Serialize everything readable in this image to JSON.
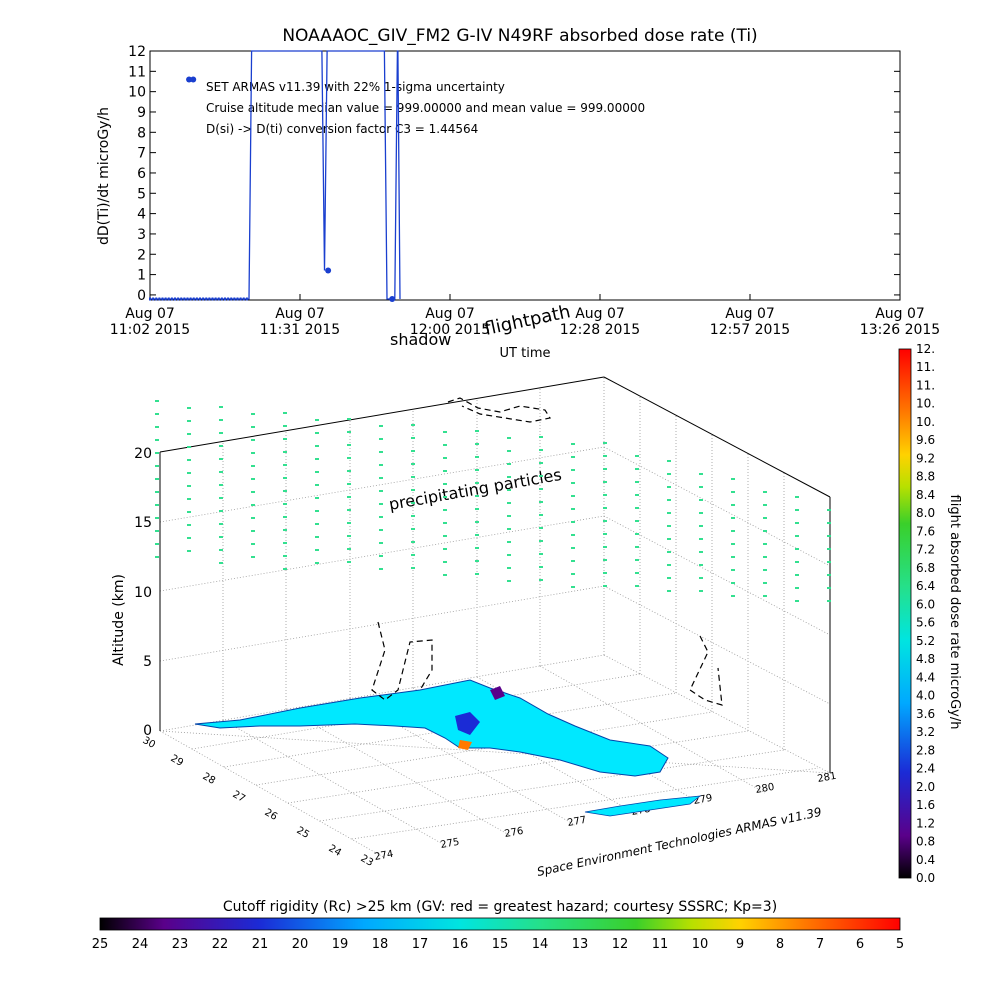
{
  "top_chart": {
    "title": "NOAAAOC_GIV_FM2  G-IV    N49RF  absorbed dose rate (Ti)",
    "annotations": [
      "SET ARMAS v11.39 with 22% 1-sigma uncertainty",
      "Cruise altitude median value = 999.00000 and mean value = 999.00000",
      "D(si) -> D(ti) conversion factor C3 = 1.44564"
    ]
  },
  "chart_data": [
    {
      "type": "line",
      "ylabel": "dD(Ti)/dt microGy/h",
      "xlabel": "UT time",
      "ylim": [
        0,
        12
      ],
      "yticks": [
        "0",
        "1",
        "2",
        "3",
        "4",
        "5",
        "6",
        "7",
        "8",
        "9",
        "10",
        "11",
        "12"
      ],
      "xticks": [
        {
          "top": "Aug 07",
          "bottom": "11:02 2015"
        },
        {
          "top": "Aug 07",
          "bottom": "11:31 2015"
        },
        {
          "top": "Aug 07",
          "bottom": "12:00 2015"
        },
        {
          "top": "Aug 07",
          "bottom": "12:28 2015"
        },
        {
          "top": "Aug 07",
          "bottom": "12:57 2015"
        },
        {
          "top": "Aug 07",
          "bottom": "13:26 2015"
        }
      ],
      "xlim_minutes": [
        0,
        144
      ],
      "series": [
        {
          "color": "#1a3fcf",
          "x_minutes": [
            0,
            6,
            7,
            18,
            19,
            19.5,
            33,
            33.5,
            34,
            35,
            35.5,
            45,
            45.5,
            47,
            47.5,
            47.6,
            48
          ],
          "values": [
            -0.2,
            -0.2,
            -0.2,
            -0.2,
            -0.2,
            12,
            12,
            1.2,
            12,
            12,
            12,
            12,
            -0.2,
            -0.2,
            12,
            12,
            -0.2
          ],
          "markers": [
            {
              "x_minutes": 7.5,
              "value": 10.6
            },
            {
              "x_minutes": 8.3,
              "value": 10.6
            },
            {
              "x_minutes": 34.2,
              "value": 1.2
            },
            {
              "x_minutes": 46.5,
              "value": -0.2
            }
          ]
        }
      ]
    },
    {
      "type": "scatter",
      "view": "3D perspective",
      "zlabel": "Altitude (km)",
      "zticks": [
        "0",
        "5",
        "10",
        "15",
        "20"
      ],
      "lat_ticks": [
        "23",
        "24",
        "25",
        "26",
        "27",
        "28",
        "29",
        "30"
      ],
      "lon_ticks": [
        "274",
        "275",
        "276",
        "277",
        "278",
        "279",
        "280",
        "281"
      ],
      "labels": {
        "flightpath": "flightpath",
        "shadow": "shadow",
        "particles": "precipitating particles",
        "credit": "Space Environment Technologies ARMAS v11.39"
      },
      "colorbar_right": {
        "title": "flight absorbed dose rate microGy/h",
        "ticks": [
          "0.0",
          "0.4",
          "0.8",
          "1.2",
          "1.6",
          "2.0",
          "2.4",
          "2.8",
          "3.2",
          "3.6",
          "4.0",
          "4.4",
          "4.8",
          "5.2",
          "5.6",
          "6.0",
          "6.4",
          "6.8",
          "7.2",
          "7.6",
          "8.0",
          "8.4",
          "8.8",
          "9.2",
          "9.6",
          "10.",
          "10.",
          "11.",
          "11.",
          "12."
        ]
      },
      "colorbar_bottom": {
        "title": "Cutoff rigidity (Rc) >25 km (GV: red = greatest hazard; courtesy SSSRC; Kp=3)",
        "ticks": [
          "25",
          "24",
          "23",
          "22",
          "21",
          "20",
          "19",
          "18",
          "17",
          "16",
          "15",
          "14",
          "13",
          "12",
          "11",
          "10",
          "9",
          "8",
          "7",
          "6",
          "5"
        ]
      }
    }
  ],
  "colors": {
    "line": "#1a3fcf",
    "particles": "#33e090",
    "land": "#00e5ff",
    "grid": "#999999"
  }
}
